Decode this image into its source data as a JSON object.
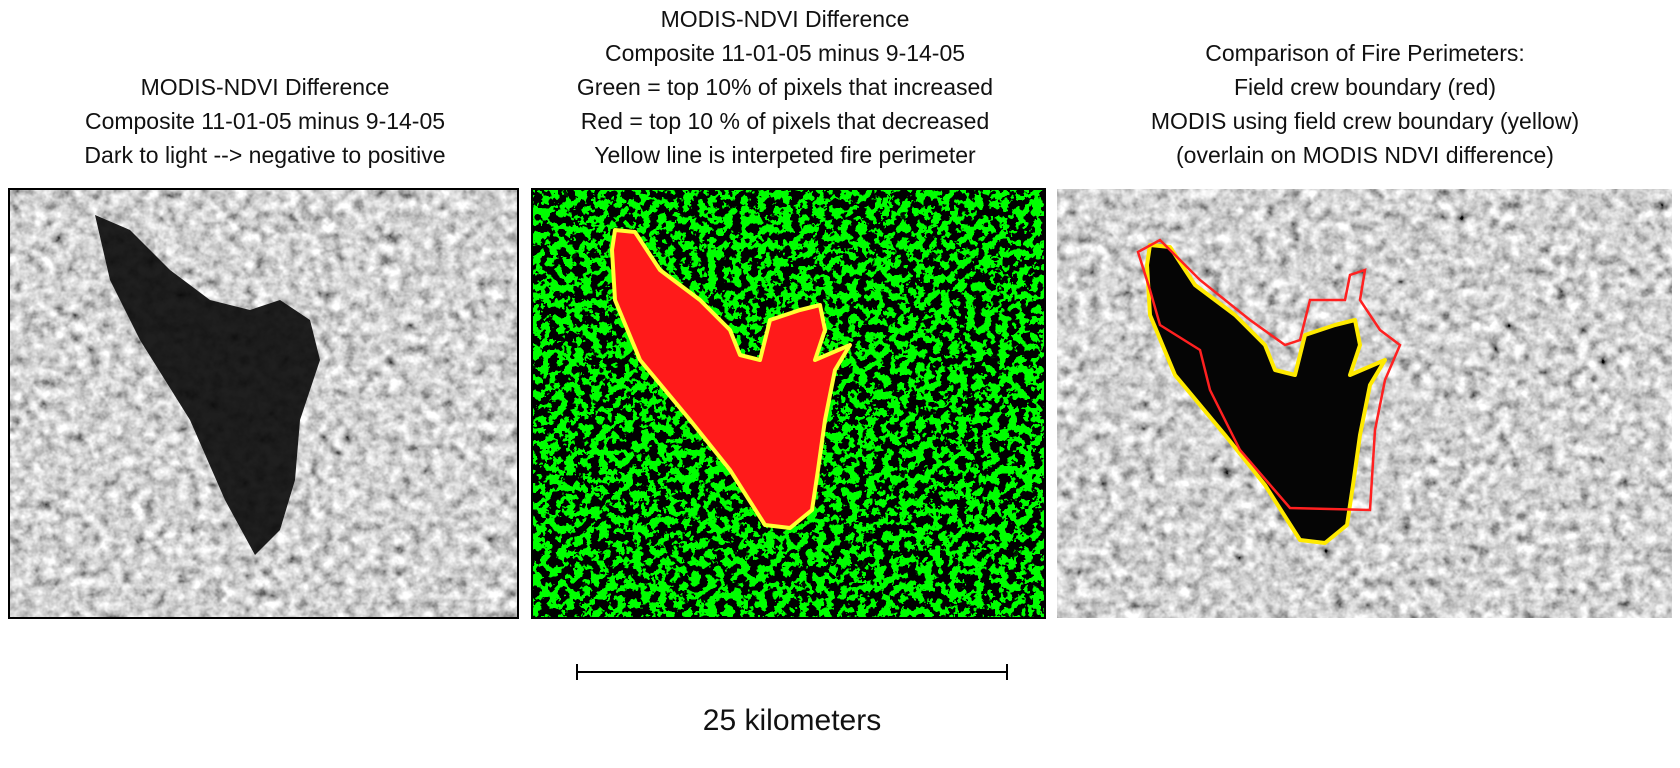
{
  "panels": [
    {
      "title_lines": [
        "MODIS-NDVI Difference",
        "Composite 11-01-05 minus 9-14-05",
        "Dark to light --> negative to positive"
      ]
    },
    {
      "title_lines": [
        "MODIS-NDVI Difference",
        "Composite 11-01-05 minus 9-14-05",
        "Green = top 10% of pixels that increased",
        "Red = top 10 % of pixels that decreased",
        "Yellow line is interpeted fire perimeter"
      ]
    },
    {
      "title_lines": [
        "Comparison of Fire Perimeters:",
        "Field crew boundary (red)",
        "MODIS using field crew boundary (yellow)",
        "(overlain on MODIS NDVI difference)"
      ]
    }
  ],
  "scale_bar": {
    "label": "25 kilometers"
  }
}
